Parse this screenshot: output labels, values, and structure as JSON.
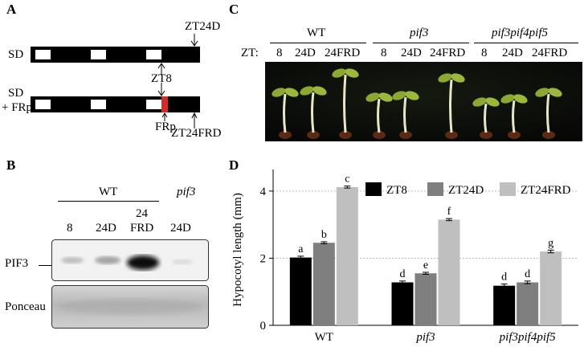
{
  "panel_a": {
    "label": "A",
    "row1_label": "SD",
    "row2_label_1": "SD",
    "row2_label_2": "+ FRp",
    "marker_zt24d": "ZT24D",
    "marker_zt8": "ZT8",
    "marker_frp": "FRp",
    "marker_zt24frd": "ZT24FRD",
    "frp_color": "#d42a2a"
  },
  "panel_b": {
    "label": "B",
    "group_wt": "WT",
    "group_pif3": "pif3",
    "lanes": [
      "8",
      "24D",
      "FRD",
      "24D"
    ],
    "lane3_top": "24",
    "row_pif3": "PIF3",
    "row_ponceau": "Ponceau"
  },
  "panel_c": {
    "label": "C",
    "groups": [
      "WT",
      "pif3",
      "pif3pif4pif5"
    ],
    "zt_label": "ZT:",
    "conditions": [
      "8",
      "24D",
      "24FRD"
    ]
  },
  "panel_d": {
    "label": "D",
    "chart_data": {
      "type": "bar",
      "categories": [
        "WT",
        "pif3",
        "pif3pif4pif5"
      ],
      "series": [
        {
          "name": "ZT8",
          "values": [
            2.02,
            1.28,
            1.18
          ],
          "errors": [
            0.04,
            0.04,
            0.05
          ],
          "letters": [
            "a",
            "d",
            "d"
          ],
          "color": "#000000"
        },
        {
          "name": "ZT24D",
          "values": [
            2.46,
            1.55,
            1.28
          ],
          "errors": [
            0.03,
            0.03,
            0.04
          ],
          "letters": [
            "b",
            "e",
            "d"
          ],
          "color": "#7f7f7f"
        },
        {
          "name": "ZT24FRD",
          "values": [
            4.12,
            3.15,
            2.2
          ],
          "errors": [
            0.03,
            0.03,
            0.04
          ],
          "letters": [
            "c",
            "f",
            "g"
          ],
          "color": "#bfbfbf"
        }
      ],
      "ylabel": "Hypocotyl length (mm)",
      "ylim": [
        0,
        4.5
      ],
      "yticks": [
        0,
        2,
        4
      ],
      "grid": true,
      "legend_position": "top"
    }
  }
}
